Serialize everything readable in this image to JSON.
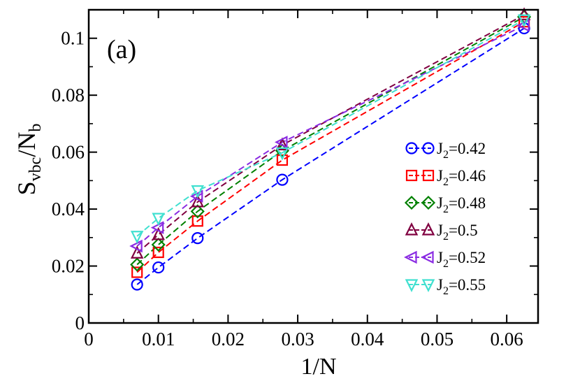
{
  "chart_data": {
    "type": "line",
    "panel_label": "(a)",
    "xlabel": "1/N",
    "ylabel": {
      "main": "S",
      "sub1": "vbc",
      "mid": "/N",
      "sub2": "b"
    },
    "xlim": [
      0,
      0.0645
    ],
    "ylim": [
      0,
      0.11
    ],
    "xticks": [
      0,
      0.01,
      0.02,
      0.03,
      0.04,
      0.05,
      0.06
    ],
    "xtick_labels": [
      "0",
      "0.01",
      "0.02",
      "0.03",
      "0.04",
      "0.05",
      "0.06"
    ],
    "yticks": [
      0,
      0.02,
      0.04,
      0.06,
      0.08,
      0.1
    ],
    "ytick_labels": [
      "0",
      "0.02",
      "0.04",
      "0.06",
      "0.08",
      "0.1"
    ],
    "legend_position": "center-right",
    "x": [
      0.00694,
      0.01,
      0.015625,
      0.02778,
      0.0625
    ],
    "series": [
      {
        "name": "J2=0.42",
        "legend_label": {
          "pre": "J",
          "sub": "2",
          "post": "=0.42"
        },
        "marker": "circle",
        "color": "#0000ff",
        "values": [
          0.0135,
          0.0195,
          0.0298,
          0.0503,
          0.1035
        ]
      },
      {
        "name": "J2=0.46",
        "legend_label": {
          "pre": "J",
          "sub": "2",
          "post": "=0.46"
        },
        "marker": "square",
        "color": "#ff0000",
        "values": [
          0.0178,
          0.0248,
          0.0358,
          0.0572,
          0.1058
        ]
      },
      {
        "name": "J2=0.48",
        "legend_label": {
          "pre": "J",
          "sub": "2",
          "post": "=0.48"
        },
        "marker": "diamond",
        "color": "#008000",
        "values": [
          0.0205,
          0.0275,
          0.0392,
          0.0605,
          0.1075
        ]
      },
      {
        "name": "J2=0.5",
        "legend_label": {
          "pre": "J",
          "sub": "2",
          "post": "=0.5"
        },
        "marker": "triangle-up",
        "color": "#800040",
        "values": [
          0.0245,
          0.031,
          0.0425,
          0.0625,
          0.1082
        ]
      },
      {
        "name": "J2=0.52",
        "legend_label": {
          "pre": "J",
          "sub": "2",
          "post": "=0.52"
        },
        "marker": "triangle-left",
        "color": "#8a2be2",
        "values": [
          0.027,
          0.0335,
          0.0445,
          0.0635,
          0.1045
        ]
      },
      {
        "name": "J2=0.55",
        "legend_label": {
          "pre": "J",
          "sub": "2",
          "post": "=0.55"
        },
        "marker": "triangle-down",
        "color": "#40e0d0",
        "values": [
          0.0305,
          0.0368,
          0.0465,
          0.0598,
          0.1065
        ]
      }
    ]
  }
}
